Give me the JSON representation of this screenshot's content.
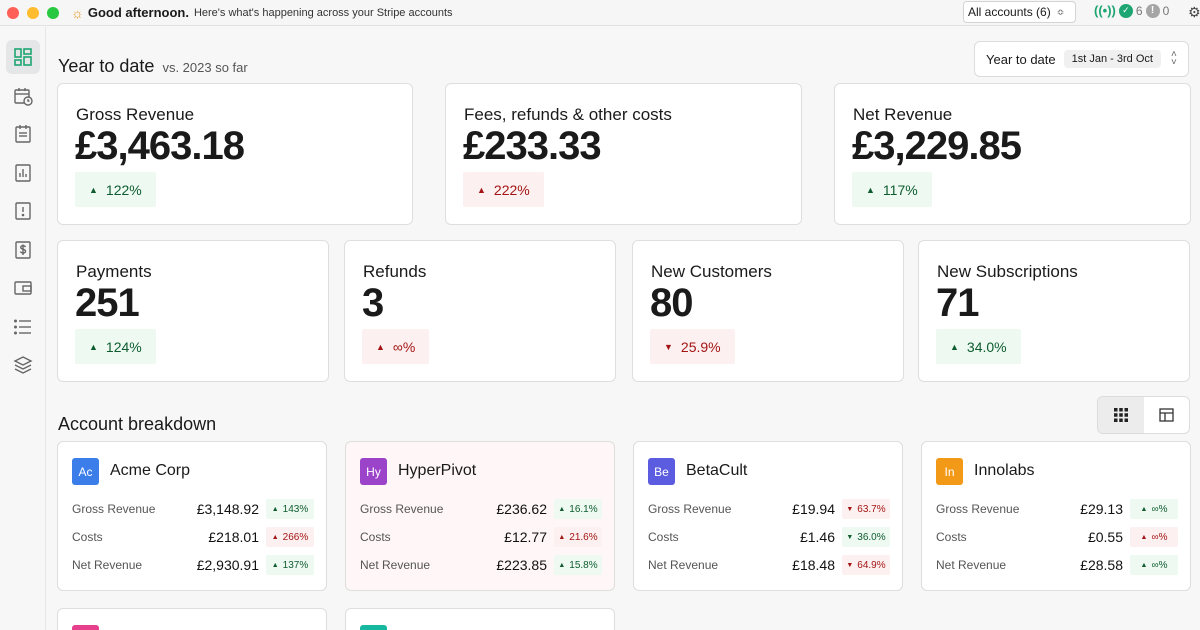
{
  "titlebar": {
    "greeting": "Good afternoon.",
    "subtitle": "Here's what's happening across your Stripe accounts",
    "account_select": "All accounts (6)",
    "ok_count": "6",
    "warn_count": "0"
  },
  "sidebar": {
    "items": [
      "home",
      "scheduled",
      "reports",
      "analytics",
      "disputes",
      "payouts",
      "balances",
      "list",
      "layers"
    ],
    "active_index": 0
  },
  "ytd": {
    "title": "Year to date",
    "compare": "vs. 2023 so far",
    "range_label": "Year to date",
    "range_value": "1st Jan - 3rd Oct"
  },
  "summary_cards": [
    {
      "title": "Gross Revenue",
      "value": "£3,463.18",
      "change": "122%",
      "direction": "up"
    },
    {
      "title": "Fees, refunds & other costs",
      "value": "£233.33",
      "change": "222%",
      "direction": "up",
      "negative": true
    },
    {
      "title": "Net Revenue",
      "value": "£3,229.85",
      "change": "117%",
      "direction": "up"
    }
  ],
  "metric_cards": [
    {
      "title": "Payments",
      "value": "251",
      "change": "124%",
      "direction": "up"
    },
    {
      "title": "Refunds",
      "value": "3",
      "change": "∞%",
      "direction": "up",
      "negative": true
    },
    {
      "title": "New Customers",
      "value": "80",
      "change": "25.9%",
      "direction": "down"
    },
    {
      "title": "New Subscriptions",
      "value": "71",
      "change": "34.0%",
      "direction": "up"
    }
  ],
  "breakdown": {
    "title": "Account breakdown",
    "row_labels": [
      "Gross Revenue",
      "Costs",
      "Net Revenue"
    ],
    "accounts": [
      {
        "initials": "Ac",
        "name": "Acme Corp",
        "color": "#3b7de9",
        "highlight": false,
        "rows": [
          {
            "amount": "£3,148.92",
            "change": "143%",
            "dir": "up",
            "neg": false
          },
          {
            "amount": "£218.01",
            "change": "266%",
            "dir": "up",
            "neg": true
          },
          {
            "amount": "£2,930.91",
            "change": "137%",
            "dir": "up",
            "neg": false
          }
        ]
      },
      {
        "initials": "Hy",
        "name": "HyperPivot",
        "color": "#9b44c9",
        "highlight": true,
        "rows": [
          {
            "amount": "£236.62",
            "change": "16.1%",
            "dir": "up",
            "neg": false
          },
          {
            "amount": "£12.77",
            "change": "21.6%",
            "dir": "up",
            "neg": true
          },
          {
            "amount": "£223.85",
            "change": "15.8%",
            "dir": "up",
            "neg": false
          }
        ]
      },
      {
        "initials": "Be",
        "name": "BetaCult",
        "color": "#5c5ce0",
        "highlight": false,
        "rows": [
          {
            "amount": "£19.94",
            "change": "63.7%",
            "dir": "down",
            "neg": true
          },
          {
            "amount": "£1.46",
            "change": "36.0%",
            "dir": "down",
            "neg": false
          },
          {
            "amount": "£18.48",
            "change": "64.9%",
            "dir": "down",
            "neg": true
          }
        ]
      },
      {
        "initials": "In",
        "name": "Innolabs",
        "color": "#f29a17",
        "highlight": false,
        "rows": [
          {
            "amount": "£29.13",
            "change": "∞%",
            "dir": "up",
            "neg": false
          },
          {
            "amount": "£0.55",
            "change": "∞%",
            "dir": "up",
            "neg": true
          },
          {
            "amount": "£28.58",
            "change": "∞%",
            "dir": "up",
            "neg": false
          }
        ]
      }
    ],
    "partial_logo_colors": [
      "#e63f8c",
      "#17b8a0"
    ]
  }
}
